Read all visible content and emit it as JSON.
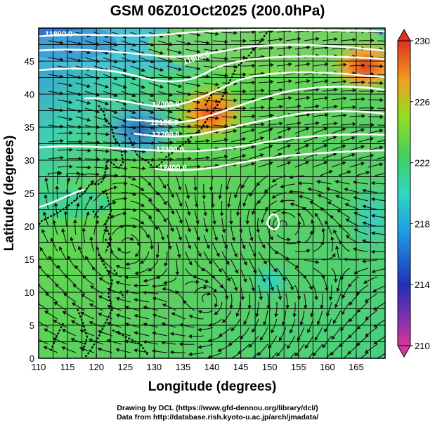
{
  "title": "GSM 06Z01Oct2025 (200.0hPa)",
  "axes": {
    "xlabel": "Longitude (degrees)",
    "ylabel": "Latitude  (degrees)",
    "xticks": [
      "110",
      "115",
      "120",
      "125",
      "130",
      "135",
      "140",
      "145",
      "150",
      "155",
      "160",
      "165"
    ],
    "yticks": [
      "0",
      "5",
      "10",
      "15",
      "20",
      "25",
      "30",
      "35",
      "40",
      "45"
    ],
    "xrange": [
      110,
      170
    ],
    "yrange": [
      0,
      50
    ]
  },
  "colorbar": {
    "labels": [
      "230",
      "226",
      "222",
      "218",
      "214",
      "210"
    ],
    "range": [
      210,
      230
    ],
    "colors": [
      "#d3389a",
      "#2030b8",
      "#1fb0e8",
      "#40d060",
      "#80e030",
      "#f08020",
      "#e03020"
    ]
  },
  "contour_labels": [
    "11800.0",
    "11900.0",
    "12000.0",
    "12100.0",
    "12200.0",
    "12300.0",
    "12400.0"
  ],
  "credits": {
    "line1": "Drawing by DCL (https://www.gfd-dennou.org/library/dcl/)",
    "line2": "Data from http://database.rish.kyoto-u.ac.jp/arch/jmadata/"
  }
}
